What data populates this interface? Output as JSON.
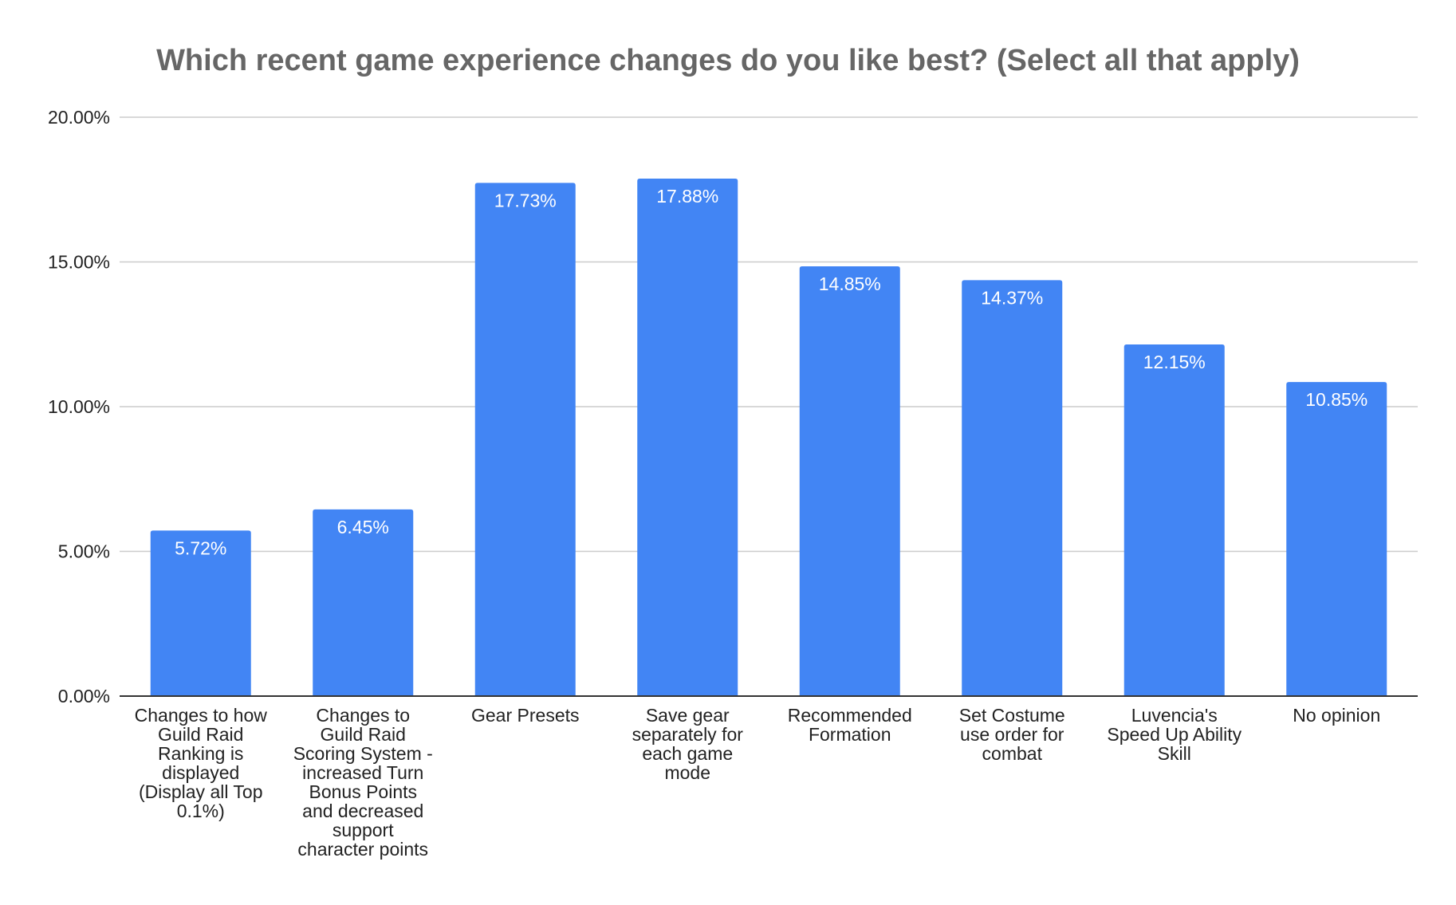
{
  "chart_data": {
    "type": "bar",
    "title": "Which recent game experience changes do you like best? (Select all that apply)",
    "xlabel": "",
    "ylabel": "",
    "categories": [
      "Changes to how Guild Raid Ranking is displayed (Display all Top 0.1%)",
      "Changes to Guild Raid Scoring System - increased Turn Bonus Points and decreased support character points",
      "Gear Presets",
      "Save gear separately for each game mode",
      "Recommended Formation",
      "Set Costume use order for combat",
      "Luvencia's Speed Up Ability Skill",
      "No opinion"
    ],
    "category_label_lines": [
      [
        "Changes to how",
        "Guild Raid",
        "Ranking is",
        "displayed",
        "(Display all Top",
        "0.1%)"
      ],
      [
        "Changes to",
        "Guild Raid",
        "Scoring System -",
        "increased Turn",
        "Bonus Points",
        "and decreased",
        "support",
        "character points"
      ],
      [
        "Gear Presets"
      ],
      [
        "Save gear",
        "separately for",
        "each game",
        "mode"
      ],
      [
        "Recommended",
        "Formation"
      ],
      [
        "Set Costume",
        "use order for",
        "combat"
      ],
      [
        "Luvencia's",
        "Speed Up Ability",
        "Skill"
      ],
      [
        "No opinion"
      ]
    ],
    "values": [
      5.72,
      6.45,
      17.73,
      17.88,
      14.85,
      14.37,
      12.15,
      10.85
    ],
    "data_labels": [
      "5.72%",
      "6.45%",
      "17.73%",
      "17.88%",
      "14.85%",
      "14.37%",
      "12.15%",
      "10.85%"
    ],
    "ylim": [
      0,
      20
    ],
    "y_ticks": [
      0,
      5,
      10,
      15,
      20
    ],
    "y_tick_labels": [
      "0.00%",
      "5.00%",
      "10.00%",
      "15.00%",
      "20.00%"
    ],
    "grid": true,
    "legend": "none",
    "colors": {
      "bar": "#4285f4",
      "title": "#666666",
      "gridline": "#cccccc",
      "axis": "#333333",
      "text": "#222222",
      "data_label": "#ffffff"
    }
  }
}
